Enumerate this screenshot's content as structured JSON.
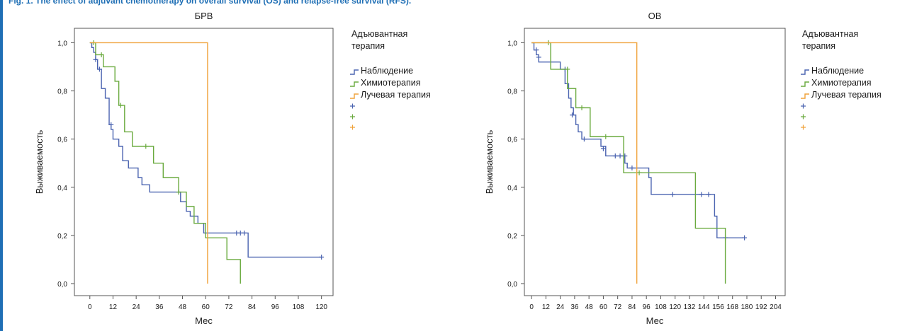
{
  "caption": "Fig. 1. The effect of adjuvant chemotherapy on overall survival (OS) and relapse-free survival (RFS).",
  "colors": {
    "observation": "#4a63b0",
    "chemotherapy": "#6aaa3e",
    "radiotherapy": "#f0a23a",
    "caption": "#1f6fb5"
  },
  "chart_data": [
    {
      "type": "line",
      "title": "БРВ",
      "xlabel": "Мес",
      "ylabel": "Выживаемость",
      "xlim": [
        -8,
        126
      ],
      "ylim": [
        -0.05,
        1.06
      ],
      "xticks": [
        0,
        12,
        24,
        36,
        48,
        60,
        72,
        84,
        96,
        108,
        120
      ],
      "yticks": [
        0.0,
        0.2,
        0.4,
        0.6,
        0.8,
        1.0
      ],
      "ytick_labels": [
        "0,0",
        "0,2",
        "0,4",
        "0,6",
        "0,8",
        "1,0"
      ],
      "legend": {
        "title_lines": [
          "Адъювантная",
          "терапия"
        ],
        "entries": [
          "Наблюдение",
          "Химиотерапия",
          "Лучевая терапия"
        ],
        "placement": "right"
      },
      "series": [
        {
          "name": "Наблюдение",
          "steps": [
            [
              0,
              1.0
            ],
            [
              1,
              0.98
            ],
            [
              2,
              0.96
            ],
            [
              3,
              0.93
            ],
            [
              4,
              0.89
            ],
            [
              6,
              0.81
            ],
            [
              8,
              0.77
            ],
            [
              10,
              0.66
            ],
            [
              11,
              0.64
            ],
            [
              12,
              0.6
            ],
            [
              15,
              0.57
            ],
            [
              17,
              0.51
            ],
            [
              20,
              0.48
            ],
            [
              25,
              0.44
            ],
            [
              27,
              0.41
            ],
            [
              31,
              0.38
            ],
            [
              45,
              0.38
            ],
            [
              47,
              0.34
            ],
            [
              50,
              0.3
            ],
            [
              52,
              0.28
            ],
            [
              56,
              0.25
            ],
            [
              59,
              0.21
            ],
            [
              82,
              0.21
            ],
            [
              82,
              0.11
            ],
            [
              120,
              0.11
            ]
          ],
          "censored": [
            [
              3,
              0.93
            ],
            [
              5,
              0.89
            ],
            [
              11,
              0.66
            ],
            [
              46,
              0.38
            ],
            [
              76,
              0.21
            ],
            [
              78,
              0.21
            ],
            [
              80,
              0.21
            ],
            [
              120,
              0.11
            ]
          ]
        },
        {
          "name": "Химиотерапия",
          "steps": [
            [
              0,
              1.0
            ],
            [
              3,
              0.95
            ],
            [
              7,
              0.9
            ],
            [
              13,
              0.84
            ],
            [
              15,
              0.74
            ],
            [
              18,
              0.63
            ],
            [
              22,
              0.57
            ],
            [
              33,
              0.5
            ],
            [
              38,
              0.44
            ],
            [
              46,
              0.38
            ],
            [
              50,
              0.32
            ],
            [
              54,
              0.25
            ],
            [
              60,
              0.19
            ],
            [
              71,
              0.19
            ],
            [
              71,
              0.1
            ],
            [
              78,
              0.1
            ],
            [
              78,
              0.0
            ]
          ],
          "censored": [
            [
              2,
              1.0
            ],
            [
              6,
              0.95
            ],
            [
              16,
              0.74
            ],
            [
              29,
              0.57
            ],
            [
              46,
              0.38
            ]
          ]
        },
        {
          "name": "Лучевая терапия",
          "steps": [
            [
              0,
              1.0
            ],
            [
              61,
              1.0
            ],
            [
              61,
              0.0
            ]
          ],
          "censored": []
        }
      ]
    },
    {
      "type": "line",
      "title": "ОВ",
      "xlabel": "Мес",
      "ylabel": "Выживаемость",
      "xlim": [
        -6,
        212
      ],
      "ylim": [
        -0.05,
        1.06
      ],
      "xticks": [
        0,
        12,
        24,
        36,
        48,
        60,
        72,
        84,
        96,
        108,
        120,
        132,
        144,
        156,
        168,
        180,
        192,
        204
      ],
      "yticks": [
        0.0,
        0.2,
        0.4,
        0.6,
        0.8,
        1.0
      ],
      "ytick_labels": [
        "0,0",
        "0,2",
        "0,4",
        "0,6",
        "0,8",
        "1,0"
      ],
      "legend": {
        "title_lines": [
          "Адъювантная",
          "терапия"
        ],
        "entries": [
          "Наблюдение",
          "Химиотерапия",
          "Лучевая терапия"
        ],
        "placement": "right"
      },
      "series": [
        {
          "name": "Наблюдение",
          "steps": [
            [
              0,
              1.0
            ],
            [
              2,
              0.97
            ],
            [
              4,
              0.95
            ],
            [
              6,
              0.92
            ],
            [
              24,
              0.89
            ],
            [
              28,
              0.83
            ],
            [
              31,
              0.77
            ],
            [
              33,
              0.73
            ],
            [
              35,
              0.7
            ],
            [
              37,
              0.66
            ],
            [
              39,
              0.63
            ],
            [
              42,
              0.6
            ],
            [
              58,
              0.57
            ],
            [
              62,
              0.53
            ],
            [
              78,
              0.5
            ],
            [
              80,
              0.48
            ],
            [
              98,
              0.44
            ],
            [
              100,
              0.37
            ],
            [
              150,
              0.37
            ],
            [
              153,
              0.28
            ],
            [
              155,
              0.19
            ],
            [
              178,
              0.19
            ]
          ],
          "censored": [
            [
              4,
              0.97
            ],
            [
              6,
              0.94
            ],
            [
              28,
              0.89
            ],
            [
              34,
              0.7
            ],
            [
              44,
              0.6
            ],
            [
              60,
              0.56
            ],
            [
              70,
              0.53
            ],
            [
              74,
              0.53
            ],
            [
              78,
              0.53
            ],
            [
              84,
              0.48
            ],
            [
              118,
              0.37
            ],
            [
              142,
              0.37
            ],
            [
              148,
              0.37
            ],
            [
              162,
              0.19
            ],
            [
              178,
              0.19
            ]
          ]
        },
        {
          "name": "Химиотерапия",
          "steps": [
            [
              0,
              1.0
            ],
            [
              16,
              1.0
            ],
            [
              16,
              0.89
            ],
            [
              30,
              0.89
            ],
            [
              30,
              0.81
            ],
            [
              37,
              0.81
            ],
            [
              37,
              0.73
            ],
            [
              49,
              0.73
            ],
            [
              49,
              0.61
            ],
            [
              77,
              0.61
            ],
            [
              77,
              0.46
            ],
            [
              90,
              0.46
            ],
            [
              90,
              0.46
            ],
            [
              137,
              0.46
            ],
            [
              137,
              0.23
            ],
            [
              162,
              0.23
            ],
            [
              162,
              0.0
            ]
          ],
          "censored": [
            [
              14,
              1.0
            ],
            [
              30,
              0.89
            ],
            [
              42,
              0.73
            ],
            [
              62,
              0.61
            ],
            [
              90,
              0.46
            ]
          ]
        },
        {
          "name": "Лучевая терапия",
          "steps": [
            [
              0,
              1.0
            ],
            [
              88,
              1.0
            ],
            [
              88,
              0.0
            ]
          ],
          "censored": []
        }
      ]
    }
  ]
}
